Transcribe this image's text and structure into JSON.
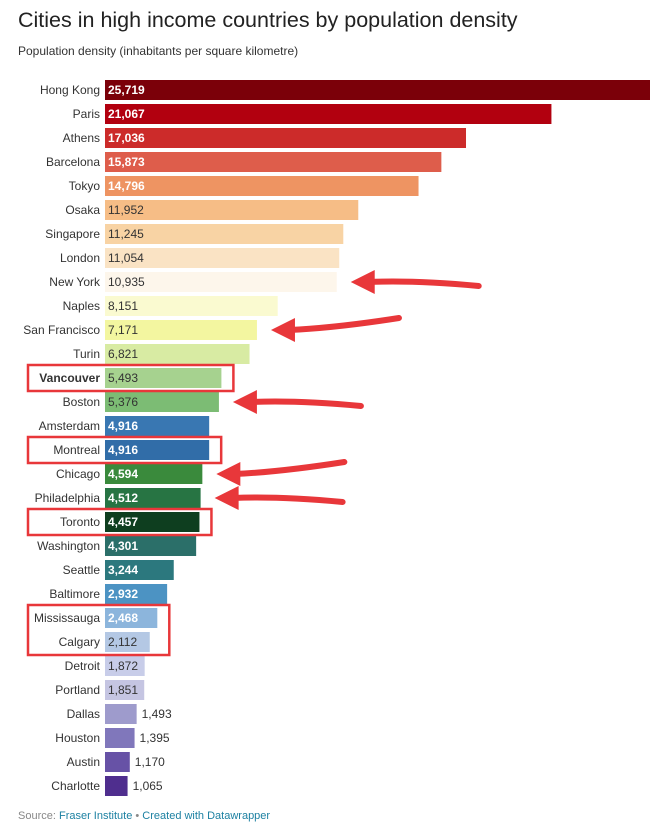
{
  "chart_data": {
    "type": "bar",
    "orientation": "horizontal",
    "title": "Cities in high income countries by population density",
    "subtitle": "Population density (inhabitants per square kilometre)",
    "xlim": [
      0,
      25719
    ],
    "categories": [
      "Hong Kong",
      "Paris",
      "Athens",
      "Barcelona",
      "Tokyo",
      "Osaka",
      "Singapore",
      "London",
      "New York",
      "Naples",
      "San Francisco",
      "Turin",
      "Vancouver",
      "Boston",
      "Amsterdam",
      "Montreal",
      "Chicago",
      "Philadelphia",
      "Toronto",
      "Washington",
      "Seattle",
      "Baltimore",
      "Mississauga",
      "Calgary",
      "Detroit",
      "Portland",
      "Dallas",
      "Houston",
      "Austin",
      "Charlotte"
    ],
    "values": [
      25719,
      21067,
      17036,
      15873,
      14796,
      11952,
      11245,
      11054,
      10935,
      8151,
      7171,
      6821,
      5493,
      5376,
      4916,
      4916,
      4594,
      4512,
      4457,
      4301,
      3244,
      2932,
      2468,
      2112,
      1872,
      1851,
      1493,
      1395,
      1170,
      1065
    ],
    "value_labels": [
      "25,719",
      "21,067",
      "17,036",
      "15,873",
      "14,796",
      "11,952",
      "11,245",
      "11,054",
      "10,935",
      "8,151",
      "7,171",
      "6,821",
      "5,493",
      "5,376",
      "4,916",
      "4,916",
      "4,594",
      "4,512",
      "4,457",
      "4,301",
      "3,244",
      "2,932",
      "2,468",
      "2,112",
      "1,872",
      "1,851",
      "1,493",
      "1,395",
      "1,170",
      "1,065"
    ],
    "colors": [
      "#7b0009",
      "#b2000f",
      "#cc2b2a",
      "#de5d4b",
      "#ee9462",
      "#f6bd86",
      "#f8d3a4",
      "#fae3c4",
      "#fdf6eb",
      "#fafad0",
      "#f3f6a0",
      "#d8eba3",
      "#a6d28f",
      "#7cbc74",
      "#3977b2",
      "#316da8",
      "#3a8a3c",
      "#277443",
      "#0e3e1f",
      "#2b6f69",
      "#2c787e",
      "#4c93c3",
      "#8cb5dc",
      "#b4c8e4",
      "#c8cde9",
      "#c5c5e2",
      "#9e9bcc",
      "#8077bb",
      "#6752a6",
      "#4f2e8e"
    ],
    "label_text_colors": [
      "#ffffff",
      "#ffffff",
      "#ffffff",
      "#ffffff",
      "#ffffff",
      "#333333",
      "#333333",
      "#333333",
      "#333333",
      "#333333",
      "#333333",
      "#333333",
      "#333333",
      "#333333",
      "#ffffff",
      "#ffffff",
      "#ffffff",
      "#ffffff",
      "#ffffff",
      "#ffffff",
      "#ffffff",
      "#ffffff",
      "#ffffff",
      "#333333",
      "#333333",
      "#333333",
      "#333333",
      "#333333",
      "#333333",
      "#333333"
    ],
    "label_bold": [
      true,
      true,
      true,
      true,
      true,
      false,
      false,
      false,
      false,
      false,
      false,
      false,
      false,
      false,
      true,
      true,
      true,
      true,
      true,
      true,
      true,
      true,
      true,
      false,
      false,
      false,
      false,
      false,
      false,
      false
    ],
    "label_outside": [
      false,
      false,
      false,
      false,
      false,
      false,
      false,
      false,
      false,
      false,
      false,
      false,
      false,
      false,
      false,
      false,
      false,
      false,
      false,
      false,
      false,
      false,
      false,
      false,
      false,
      false,
      true,
      true,
      true,
      true
    ],
    "highlight_boxes": [
      {
        "categories": [
          "Vancouver"
        ],
        "color": "#e8373a"
      },
      {
        "categories": [
          "Montreal"
        ],
        "color": "#e8373a"
      },
      {
        "categories": [
          "Toronto"
        ],
        "color": "#e8373a"
      },
      {
        "categories": [
          "Mississauga",
          "Calgary"
        ],
        "color": "#e8373a"
      }
    ],
    "bold_categories": [
      "Vancouver"
    ],
    "arrows": {
      "color": "#e8373a",
      "targets": [
        "New York",
        "San Francisco",
        "Boston",
        "Chicago",
        "Philadelphia"
      ]
    }
  },
  "source": {
    "prefix": "Source: ",
    "link_text": "Fraser Institute",
    "separator": " • ",
    "credit_text": "Created with Datawrapper"
  }
}
